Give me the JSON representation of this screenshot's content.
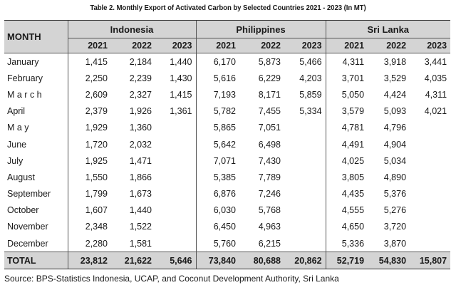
{
  "title": "Table 2. Monthly Export of Activated Carbon by Selected Countries 2021 - 2023 (In MT)",
  "header": {
    "month": "MONTH",
    "countries": [
      "Indonesia",
      "Philippines",
      "Sri Lanka"
    ],
    "years": [
      "2021",
      "2022",
      "2023"
    ]
  },
  "rows": [
    {
      "month": "January",
      "v": [
        "1,415",
        "2,184",
        "1,440",
        "6,170",
        "5,873",
        "5,466",
        "4,311",
        "3,918",
        "3,441"
      ]
    },
    {
      "month": "February",
      "v": [
        "2,250",
        "2,239",
        "1,430",
        "5,616",
        "6,229",
        "4,203",
        "3,701",
        "3,529",
        "4,035"
      ]
    },
    {
      "month": "M a r c h",
      "v": [
        "2,609",
        "2,327",
        "1,415",
        "7,193",
        "8,171",
        "5,859",
        "5,050",
        "4,424",
        "4,311"
      ]
    },
    {
      "month": "April",
      "v": [
        "2,379",
        "1,926",
        "1,361",
        "5,782",
        "7,455",
        "5,334",
        "3,579",
        "5,093",
        "4,021"
      ]
    },
    {
      "month": "M a y",
      "v": [
        "1,929",
        "1,360",
        "",
        "5,865",
        "7,051",
        "",
        "4,781",
        "4,796",
        ""
      ]
    },
    {
      "month": "June",
      "v": [
        "1,720",
        "2,032",
        "",
        "5,642",
        "6,498",
        "",
        "4,491",
        "4,904",
        ""
      ]
    },
    {
      "month": "July",
      "v": [
        "1,925",
        "1,471",
        "",
        "7,071",
        "7,430",
        "",
        "4,025",
        "5,034",
        ""
      ]
    },
    {
      "month": "August",
      "v": [
        "1,550",
        "1,866",
        "",
        "5,385",
        "7,789",
        "",
        "3,805",
        "4,890",
        ""
      ]
    },
    {
      "month": "September",
      "v": [
        "1,799",
        "1,673",
        "",
        "6,876",
        "7,246",
        "",
        "4,435",
        "5,376",
        ""
      ]
    },
    {
      "month": "October",
      "v": [
        "1,607",
        "1,440",
        "",
        "6,030",
        "5,768",
        "",
        "4,555",
        "5,276",
        ""
      ]
    },
    {
      "month": "November",
      "v": [
        "2,348",
        "1,522",
        "",
        "6,450",
        "4,963",
        "",
        "4,650",
        "3,720",
        ""
      ]
    },
    {
      "month": "December",
      "v": [
        "2,280",
        "1,581",
        "",
        "5,760",
        "6,215",
        "",
        "5,336",
        "3,870",
        ""
      ]
    }
  ],
  "total": {
    "label": "TOTAL",
    "v": [
      "23,812",
      "21,622",
      "5,646",
      "73,840",
      "80,688",
      "20,862",
      "52,719",
      "54,830",
      "15,807"
    ]
  },
  "source": "Source: BPS-Statistics Indonesia, UCAP, and Coconut Development Authority, Sri Lanka"
}
